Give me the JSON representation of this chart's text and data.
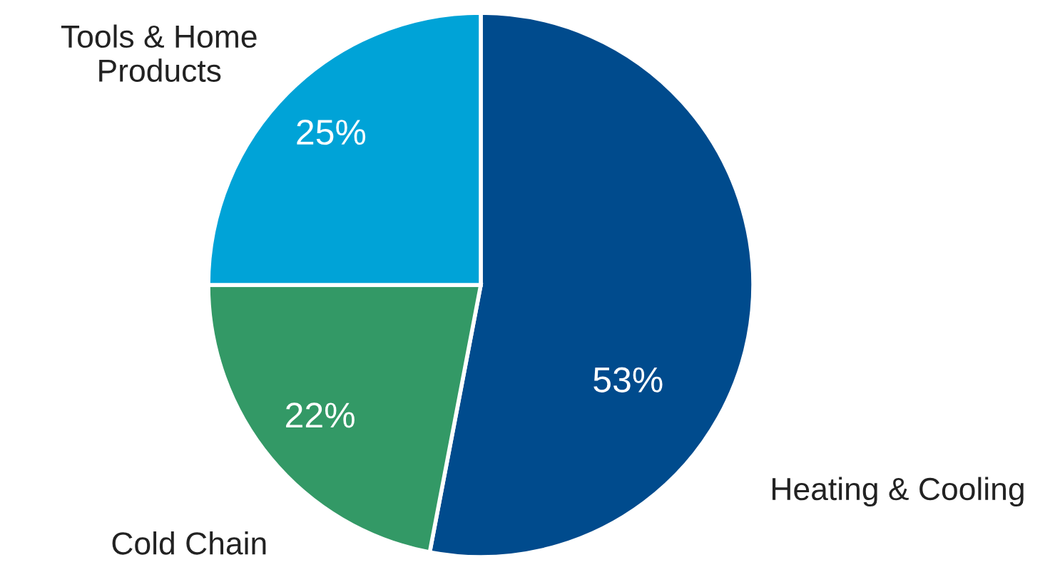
{
  "chart_data": {
    "type": "pie",
    "categories": [
      "Heating & Cooling",
      "Cold Chain",
      "Tools & Home\nProducts"
    ],
    "values": [
      53,
      22,
      25
    ],
    "colors": [
      "#004b8d",
      "#339966",
      "#00a3d7"
    ],
    "value_labels": [
      "53%",
      "22%",
      "25%"
    ]
  }
}
